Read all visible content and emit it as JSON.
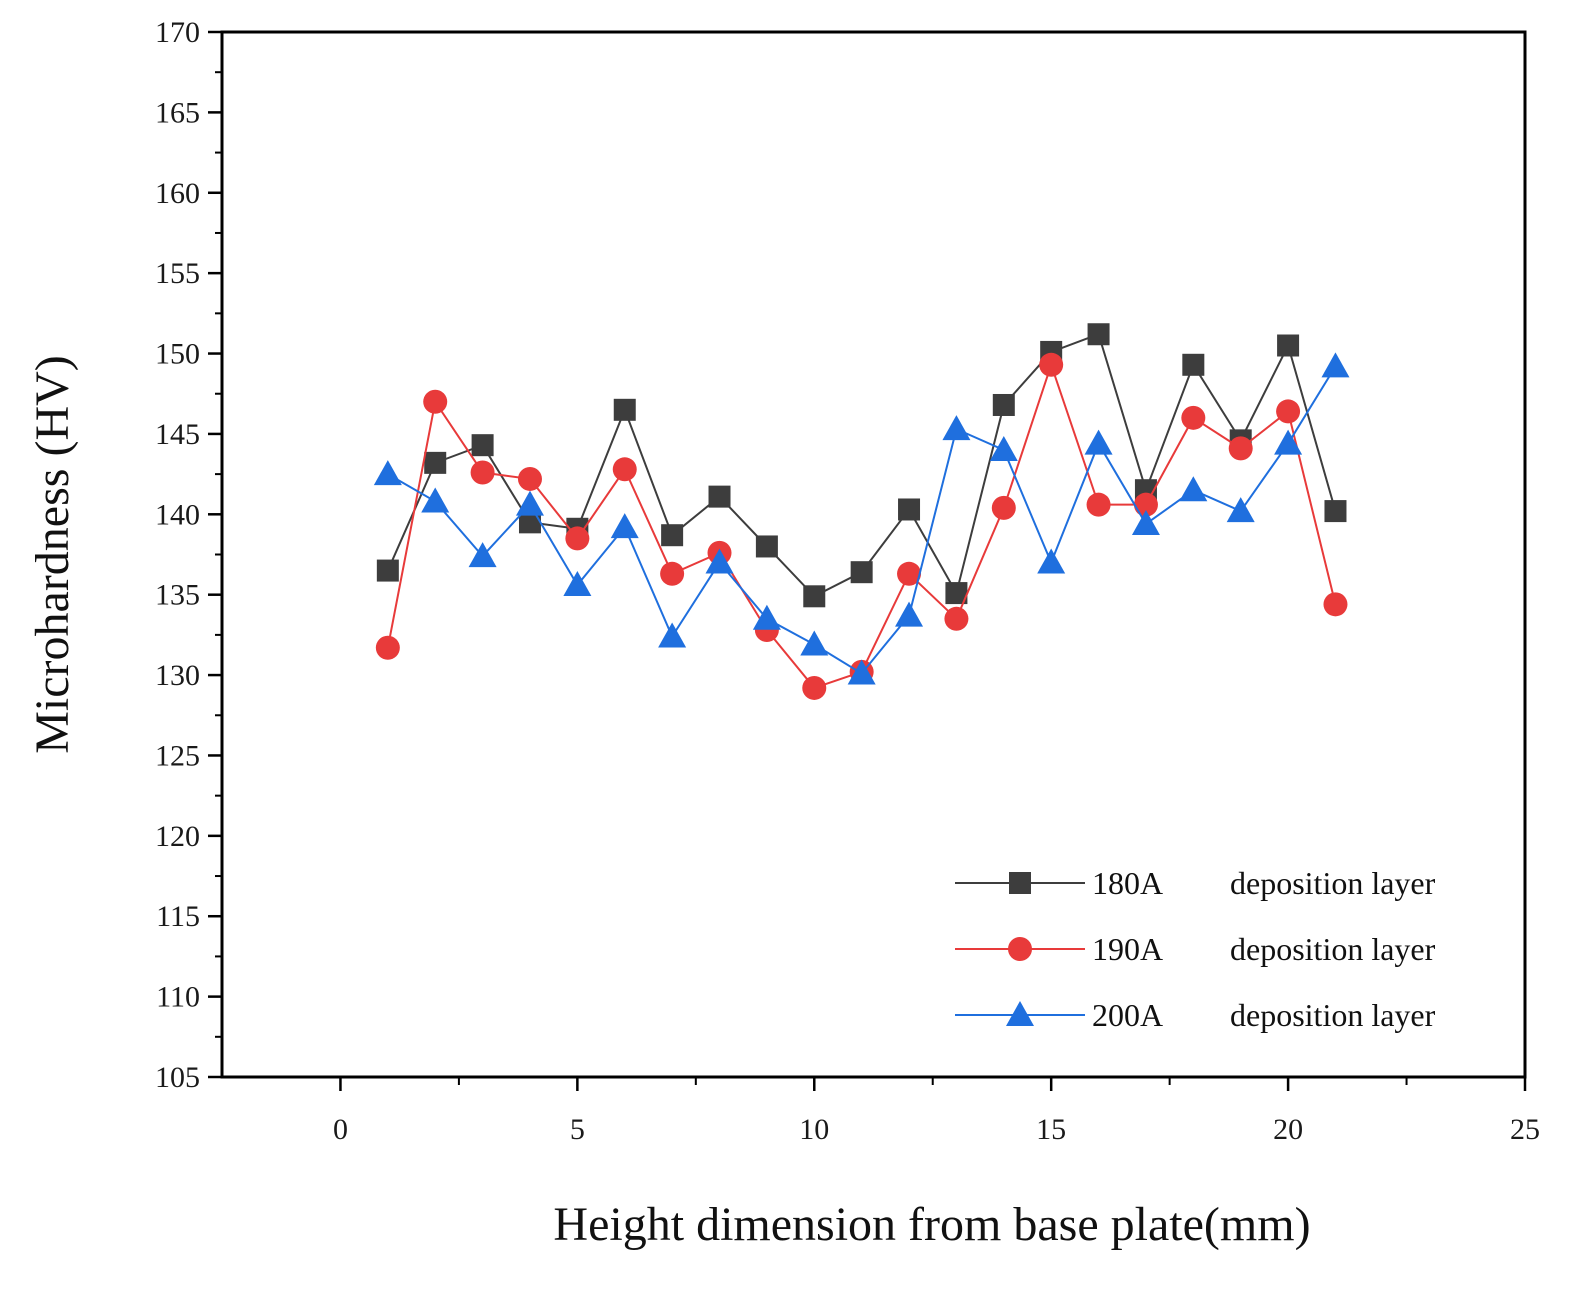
{
  "chart_data": {
    "type": "line",
    "title": "",
    "xlabel": "Height dimension from base plate(mm)",
    "ylabel": "Microhardness (HV)",
    "xlim": [
      -2.5,
      25
    ],
    "ylim": [
      105,
      170
    ],
    "xticks": [
      0,
      5,
      10,
      15,
      20,
      25
    ],
    "yticks": [
      105,
      110,
      115,
      120,
      125,
      130,
      135,
      140,
      145,
      150,
      155,
      160,
      165,
      170
    ],
    "grid": false,
    "legend_position": "bottom-right",
    "x": [
      1,
      2,
      3,
      4,
      5,
      6,
      7,
      8,
      9,
      10,
      11,
      12,
      13,
      14,
      15,
      16,
      17,
      18,
      19,
      20,
      21
    ],
    "series": [
      {
        "name": "180A deposition layer",
        "legend_current": "180A",
        "legend_label": "deposition layer",
        "marker": "square",
        "color": "#3d3d3d",
        "values": [
          136.5,
          143.2,
          144.3,
          139.5,
          139.1,
          146.5,
          138.7,
          141.1,
          138.0,
          134.9,
          136.4,
          140.3,
          135.1,
          146.8,
          150.1,
          151.2,
          141.5,
          149.3,
          144.6,
          150.5,
          140.2
        ]
      },
      {
        "name": "190A deposition layer",
        "legend_current": "190A",
        "legend_label": "deposition layer",
        "marker": "circle",
        "color": "#e83a3a",
        "values": [
          131.7,
          147.0,
          142.6,
          142.2,
          138.5,
          142.8,
          136.3,
          137.6,
          132.8,
          129.2,
          130.2,
          136.3,
          133.5,
          140.4,
          149.3,
          140.6,
          140.6,
          146.0,
          144.1,
          146.4,
          134.4
        ]
      },
      {
        "name": "200A deposition layer",
        "legend_current": "200A",
        "legend_label": "deposition layer",
        "marker": "triangle",
        "color": "#1f6fde",
        "values": [
          142.5,
          140.8,
          137.4,
          140.6,
          135.6,
          139.2,
          132.4,
          137.0,
          133.5,
          131.9,
          130.1,
          133.7,
          145.3,
          144.0,
          137.0,
          144.4,
          139.4,
          141.5,
          140.2,
          144.4,
          149.2
        ]
      }
    ]
  }
}
